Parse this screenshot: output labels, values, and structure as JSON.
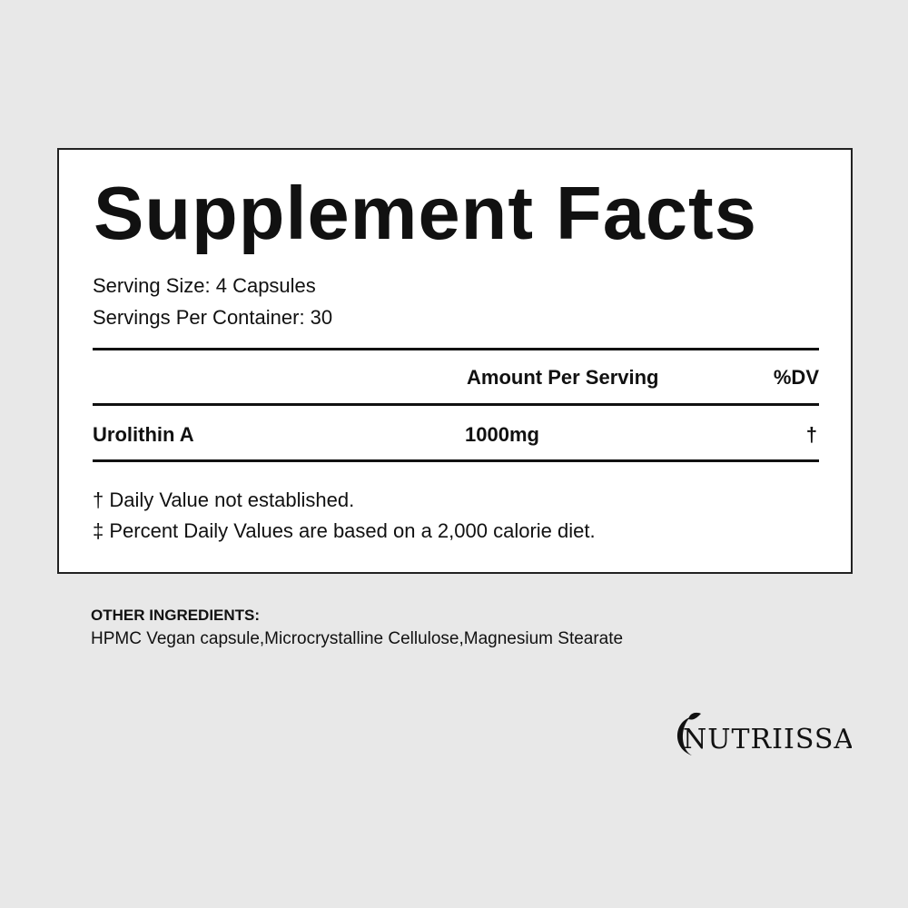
{
  "panel": {
    "title": "Supplement Facts",
    "serving_size": "Serving Size: 4 Capsules",
    "servings_per_container": "Servings Per Container: 30",
    "columns": {
      "amount": "Amount Per Serving",
      "dv": "%DV"
    },
    "rows": [
      {
        "name": "Urolithin A",
        "amount": "1000mg",
        "dv": "†"
      }
    ],
    "footnotes": [
      "† Daily Value not established.",
      "‡ Percent Daily Values are based on a 2,000 calorie diet."
    ]
  },
  "other_ingredients": {
    "heading": "OTHER INGREDIENTS:",
    "text": "HPMC Vegan capsule,Microcrystalline Cellulose,Magnesium Stearate"
  },
  "brand": {
    "logo_text": "NUTRIISSA"
  }
}
